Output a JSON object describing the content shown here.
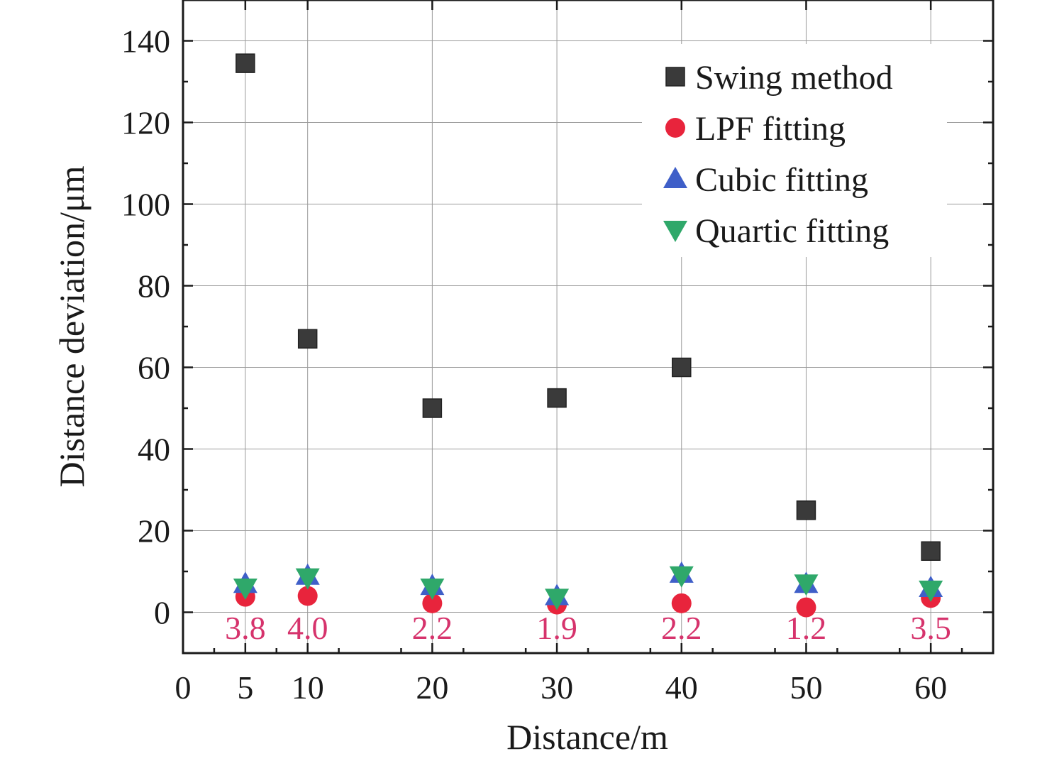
{
  "chart_data": {
    "type": "scatter",
    "xlabel": "Distance/m",
    "ylabel": "Distance deviation/μm",
    "xlim": [
      0,
      65
    ],
    "ylim": [
      -10,
      150
    ],
    "x_ticks": [
      0,
      5,
      10,
      20,
      30,
      40,
      50,
      60
    ],
    "y_ticks": [
      0,
      20,
      40,
      60,
      80,
      100,
      120,
      140
    ],
    "grid": true,
    "legend_position": "top-right",
    "x": [
      5,
      10,
      20,
      30,
      40,
      50,
      60
    ],
    "series": [
      {
        "name": "Swing method",
        "marker": "square",
        "color": "#3a3a3a",
        "values": [
          134.5,
          67,
          50,
          52.5,
          60,
          25,
          15
        ]
      },
      {
        "name": "LPF fitting",
        "marker": "circle",
        "color": "#e8243c",
        "values": [
          3.8,
          4.0,
          2.2,
          1.9,
          2.2,
          1.2,
          3.5
        ]
      },
      {
        "name": "Cubic fitting",
        "marker": "triangle-up",
        "color": "#3f5fc8",
        "values": [
          7,
          9,
          6.5,
          4,
          9.5,
          7,
          6
        ]
      },
      {
        "name": "Quartic fitting",
        "marker": "triangle-down",
        "color": "#2fa86a",
        "values": [
          6,
          8.5,
          6,
          3.5,
          9,
          7,
          5.5
        ]
      }
    ],
    "annotations": [
      "3.8",
      "4.0",
      "2.2",
      "1.9",
      "2.2",
      "1.2",
      "3.5"
    ],
    "annotation_color": "#d6336c"
  }
}
